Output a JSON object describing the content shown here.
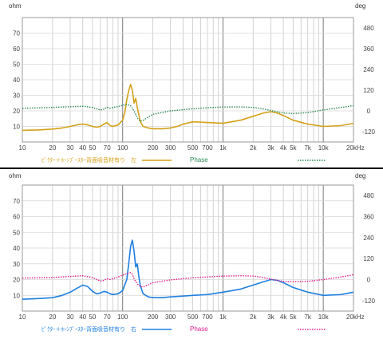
{
  "chart_data": [
    {
      "type": "line",
      "xscale": "log",
      "xlim": [
        10,
        20000
      ],
      "xtick_labels": [
        {
          "v": 10,
          "t": "10"
        },
        {
          "v": 20,
          "t": "20"
        },
        {
          "v": 30,
          "t": "30"
        },
        {
          "v": 40,
          "t": "40"
        },
        {
          "v": 50,
          "t": "50"
        },
        {
          "v": 70,
          "t": "70"
        },
        {
          "v": 100,
          "t": "100"
        },
        {
          "v": 200,
          "t": "200"
        },
        {
          "v": 300,
          "t": "300"
        },
        {
          "v": 500,
          "t": "500"
        },
        {
          "v": 700,
          "t": "700"
        },
        {
          "v": 1000,
          "t": "1k"
        },
        {
          "v": 2000,
          "t": "2k"
        },
        {
          "v": 3000,
          "t": "3k"
        },
        {
          "v": 4000,
          "t": "4k"
        },
        {
          "v": 5000,
          "t": "5k"
        },
        {
          "v": 7000,
          "t": "7k"
        },
        {
          "v": 10000,
          "t": "10k"
        },
        {
          "v": 20000,
          "t": "20kHz"
        }
      ],
      "ylabel_left": "ohm",
      "ylim_left": [
        0,
        80
      ],
      "yticks_left": [
        10,
        20,
        30,
        40,
        50,
        60,
        70
      ],
      "ylabel_right": "deg",
      "ylim_right": [
        -180,
        540
      ],
      "yticks_right": [
        -120,
        0,
        120,
        240,
        360,
        480
      ],
      "grid": true,
      "legend": {
        "impedance": "ﾋﾟｸﾀｰ＋ﾎｰﾝﾌﾟｰｽﾀｰ背面吸音材有り　左",
        "phase": "Phase"
      },
      "series": [
        {
          "name": "ﾋﾟｸﾀｰ＋ﾎｰﾝﾌﾟｰｽﾀｰ背面吸音材有り　左",
          "axis": "left",
          "color": "#d4a017",
          "x": [
            10,
            15,
            20,
            25,
            30,
            35,
            40,
            45,
            50,
            55,
            60,
            65,
            70,
            75,
            80,
            90,
            100,
            105,
            110,
            115,
            120,
            125,
            130,
            135,
            140,
            150,
            160,
            180,
            200,
            250,
            300,
            350,
            400,
            500,
            700,
            1000,
            1500,
            2000,
            2500,
            3000,
            3500,
            4000,
            5000,
            7000,
            10000,
            15000,
            20000
          ],
          "y": [
            7.5,
            7.8,
            8.3,
            9,
            10,
            11,
            11.5,
            11,
            10,
            9.5,
            10,
            11.5,
            12.5,
            10.5,
            10,
            11,
            14,
            19,
            27,
            33,
            37,
            33,
            25,
            28,
            22,
            13,
            10,
            9,
            8.5,
            8.5,
            9,
            10,
            11.5,
            13,
            12.5,
            12,
            14,
            16.5,
            18.5,
            19.5,
            18.5,
            17,
            14,
            11.5,
            10,
            10.5,
            12
          ]
        },
        {
          "name": "Phase",
          "axis": "right",
          "color": "#2e8b57",
          "x": [
            10,
            20,
            30,
            40,
            50,
            60,
            65,
            70,
            75,
            80,
            90,
            100,
            110,
            120,
            130,
            140,
            150,
            160,
            180,
            200,
            300,
            500,
            700,
            1000,
            1500,
            2000,
            2500,
            3000,
            4000,
            5000,
            7000,
            10000,
            15000,
            20000
          ],
          "y": [
            15,
            20,
            24,
            27,
            20,
            5,
            10,
            22,
            15,
            20,
            25,
            32,
            38,
            30,
            0,
            -40,
            -60,
            -55,
            -35,
            -20,
            0,
            12,
            18,
            22,
            23,
            20,
            12,
            2,
            -12,
            -15,
            -10,
            5,
            20,
            30
          ]
        }
      ]
    },
    {
      "type": "line",
      "xscale": "log",
      "xlim": [
        10,
        20000
      ],
      "xtick_labels": [
        {
          "v": 10,
          "t": "10"
        },
        {
          "v": 20,
          "t": "20"
        },
        {
          "v": 30,
          "t": "30"
        },
        {
          "v": 40,
          "t": "40"
        },
        {
          "v": 50,
          "t": "50"
        },
        {
          "v": 70,
          "t": "70"
        },
        {
          "v": 100,
          "t": "100"
        },
        {
          "v": 200,
          "t": "200"
        },
        {
          "v": 300,
          "t": "300"
        },
        {
          "v": 500,
          "t": "500"
        },
        {
          "v": 700,
          "t": "700"
        },
        {
          "v": 1000,
          "t": "1k"
        },
        {
          "v": 2000,
          "t": "2k"
        },
        {
          "v": 3000,
          "t": "3k"
        },
        {
          "v": 4000,
          "t": "4k"
        },
        {
          "v": 5000,
          "t": "5k"
        },
        {
          "v": 7000,
          "t": "7k"
        },
        {
          "v": 10000,
          "t": "10k"
        },
        {
          "v": 20000,
          "t": "20kHz"
        }
      ],
      "ylabel_left": "ohm",
      "ylim_left": [
        0,
        80
      ],
      "yticks_left": [
        10,
        20,
        30,
        40,
        50,
        60,
        70
      ],
      "ylabel_right": "deg",
      "ylim_right": [
        -180,
        540
      ],
      "yticks_right": [
        -120,
        0,
        120,
        240,
        360,
        480
      ],
      "grid": true,
      "legend": {
        "impedance": "ﾋﾟｸﾀｰ＋ﾎｰﾝﾌﾟｰｽﾀｰ背面吸音材有り　右",
        "phase": "Phase"
      },
      "series": [
        {
          "name": "ﾋﾟｸﾀｰ＋ﾎｰﾝﾌﾟｰｽﾀｰ背面吸音材有り　右",
          "axis": "left",
          "color": "#1f7fe0",
          "x": [
            10,
            15,
            20,
            25,
            30,
            35,
            40,
            45,
            50,
            55,
            60,
            65,
            70,
            75,
            80,
            90,
            100,
            110,
            115,
            120,
            125,
            130,
            135,
            140,
            145,
            150,
            160,
            180,
            200,
            250,
            300,
            400,
            500,
            700,
            1000,
            1500,
            2000,
            2500,
            3000,
            3500,
            4000,
            5000,
            7000,
            10000,
            15000,
            20000
          ],
          "y": [
            7.5,
            8,
            8.5,
            10,
            12,
            14.5,
            16.5,
            15.5,
            12.5,
            11,
            11.5,
            12.5,
            12,
            11,
            10.5,
            11,
            13,
            20,
            30,
            41,
            45,
            38,
            28,
            30,
            22,
            16,
            11,
            9,
            8.5,
            8.5,
            9,
            9.5,
            10,
            10.5,
            12,
            14,
            16.5,
            18.5,
            20,
            19.5,
            18,
            15,
            12,
            10,
            10.5,
            12
          ]
        },
        {
          "name": "Phase",
          "axis": "right",
          "color": "#e0208c",
          "x": [
            10,
            20,
            30,
            40,
            50,
            60,
            65,
            70,
            75,
            80,
            90,
            100,
            110,
            120,
            125,
            130,
            140,
            150,
            160,
            180,
            200,
            300,
            500,
            700,
            1000,
            1500,
            2000,
            2500,
            3000,
            4000,
            5000,
            7000,
            10000,
            15000,
            20000
          ],
          "y": [
            8,
            12,
            18,
            22,
            12,
            -8,
            -5,
            5,
            0,
            5,
            15,
            25,
            35,
            40,
            30,
            5,
            -25,
            -40,
            -42,
            -30,
            -18,
            -2,
            10,
            15,
            20,
            22,
            20,
            12,
            2,
            -10,
            -12,
            -10,
            0,
            15,
            28
          ]
        }
      ]
    }
  ]
}
